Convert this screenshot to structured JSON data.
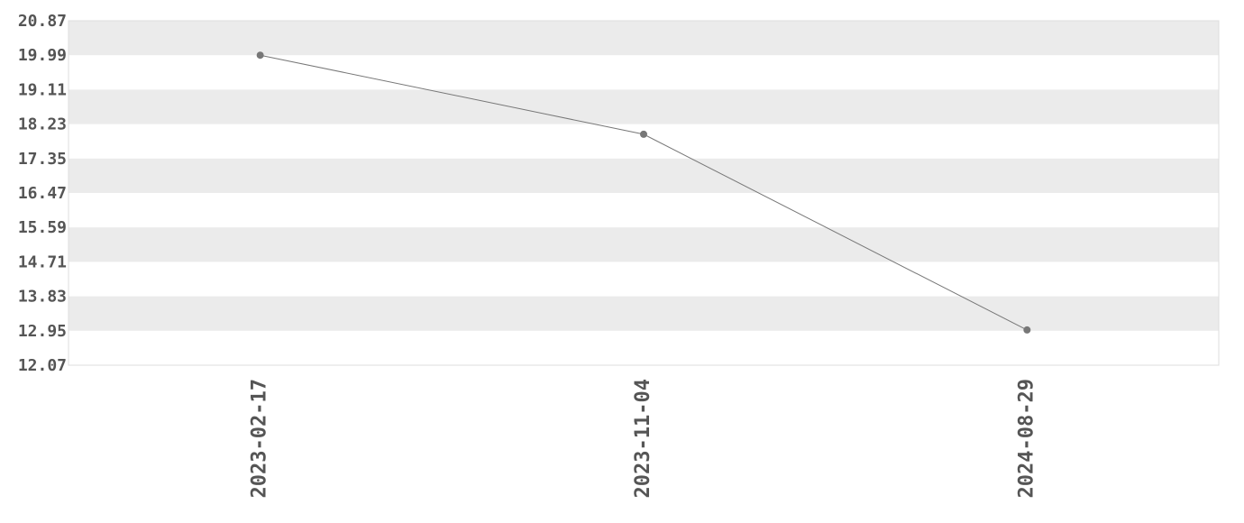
{
  "chart_data": {
    "type": "line",
    "title": "",
    "xlabel": "",
    "ylabel": "",
    "categories": [
      "2023-02-17",
      "2023-11-04",
      "2024-08-29"
    ],
    "values": [
      19.99,
      17.97,
      12.97
    ],
    "ylim": [
      12.07,
      20.87
    ],
    "yticks": [
      "20.87",
      "19.99",
      "19.11",
      "18.23",
      "17.35",
      "16.47",
      "15.59",
      "14.71",
      "13.83",
      "12.95",
      "12.07"
    ],
    "grid": "alternating horizontal bands",
    "legend": "none",
    "colors": {
      "line": "#777777",
      "marker": "#777777",
      "band": "#ebebeb",
      "border": "#dddddd",
      "text": "#555555"
    }
  }
}
